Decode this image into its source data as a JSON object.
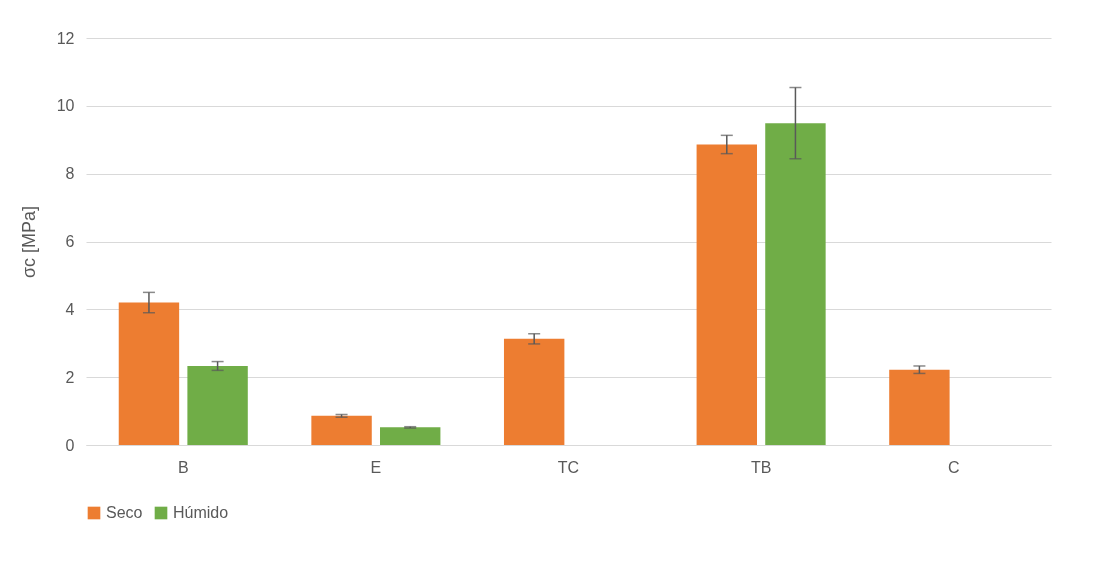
{
  "chart_data": {
    "type": "bar",
    "ylabel": "σc [MPa]",
    "categories": [
      "B",
      "E",
      "TC",
      "TB",
      "C"
    ],
    "series": [
      {
        "name": "Seco",
        "color": "#ed7d31",
        "values": [
          4.2,
          0.86,
          3.13,
          8.86,
          2.22
        ],
        "errors": [
          0.3,
          0.04,
          0.15,
          0.27,
          0.11
        ]
      },
      {
        "name": "Húmido",
        "color": "#70ad47",
        "values": [
          2.33,
          0.52,
          0,
          9.49,
          0
        ],
        "errors": [
          0.13,
          0.02,
          null,
          1.05,
          null
        ]
      }
    ],
    "ylim": [
      0,
      12
    ],
    "yticks": [
      0,
      2,
      4,
      6,
      8,
      10,
      12
    ],
    "grid": "y",
    "legend": "bottom"
  }
}
